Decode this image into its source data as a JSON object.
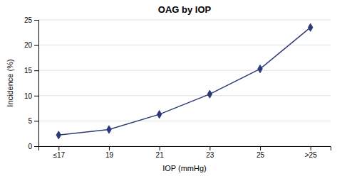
{
  "chart_data": {
    "type": "line",
    "title": "OAG by IOP",
    "xlabel": "IOP (mmHg)",
    "ylabel": "Incidence (%)",
    "categories": [
      "≤17",
      "19",
      "21",
      "23",
      "25",
      ">25"
    ],
    "values": [
      2.2,
      3.3,
      6.3,
      10.3,
      15.3,
      23.5
    ],
    "color": "#2d3a7a",
    "marker": "diamond",
    "ylim": [
      0,
      25
    ],
    "yticks": [
      0,
      5,
      10,
      15,
      20,
      25
    ],
    "grid": true
  }
}
